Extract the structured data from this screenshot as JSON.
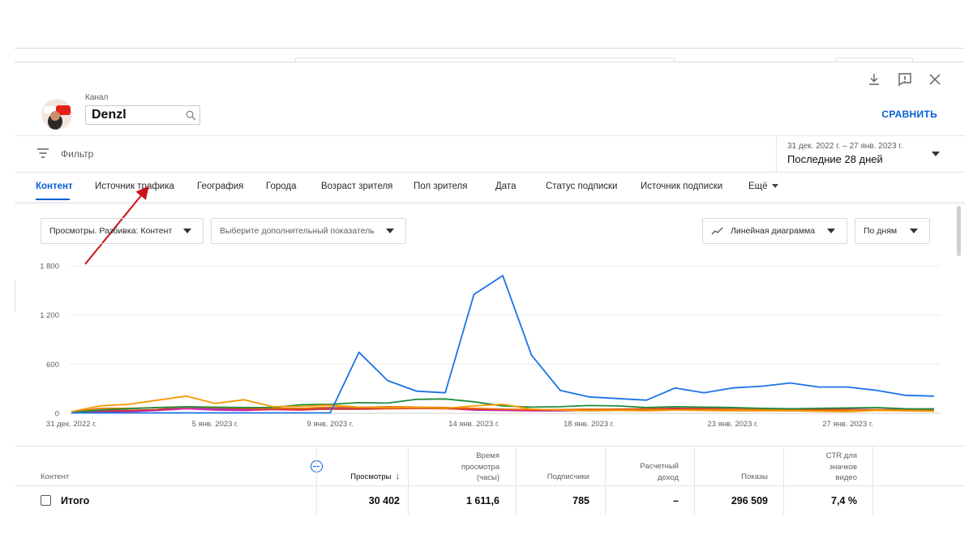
{
  "header": {
    "channel_label": "Канал",
    "channel_value": "Denzl",
    "compare_label": "СРАВНИТЬ",
    "avatar_text": "YouTube",
    "icons": [
      "download-icon",
      "feedback-icon",
      "close-icon",
      "search-icon"
    ]
  },
  "filter": {
    "label": "Фильтр",
    "date_range": "31 дек. 2022 г. – 27 янв. 2023 г.",
    "period": "Последние 28 дней"
  },
  "tabs": [
    {
      "label": "Контент",
      "active": true
    },
    {
      "label": "Источник трафика"
    },
    {
      "label": "География"
    },
    {
      "label": "Города"
    },
    {
      "label": "Возраст зрителя"
    },
    {
      "label": "Пол зрителя"
    },
    {
      "label": "Дата"
    },
    {
      "label": "Статус подписки"
    },
    {
      "label": "Источник подписки"
    },
    {
      "label": "Ещё"
    }
  ],
  "controls": {
    "metric": "Просмотры. Разбивка: Контент",
    "extra_metric": "Выберите дополнительный показатель",
    "chart_type": "Линейная диаграмма",
    "granularity": "По дням"
  },
  "chart_data": {
    "type": "line",
    "ylim": [
      0,
      1800
    ],
    "yticks": [
      0,
      600,
      1200,
      1800
    ],
    "ytick_labels": [
      "0",
      "600",
      "1 200",
      "1 800"
    ],
    "x_labels": [
      "31 дек. 2022 г.",
      "5 янв. 2023 г.",
      "9 янв. 2023 г.",
      "14 янв. 2023 г.",
      "18 янв. 2023 г.",
      "23 янв. 2023 г.",
      "27 янв. 2023 г."
    ],
    "x_label_index": [
      0,
      5,
      9,
      14,
      18,
      23,
      27
    ],
    "grid": true,
    "series": [
      {
        "color": "#1a73e8",
        "values": [
          5,
          5,
          5,
          5,
          5,
          5,
          5,
          5,
          5,
          5,
          745,
          400,
          270,
          250,
          1450,
          1680,
          710,
          280,
          200,
          180,
          160,
          310,
          250,
          310,
          330,
          370,
          320,
          320,
          280,
          220,
          210
        ]
      },
      {
        "color": "#f29900",
        "values": [
          20,
          90,
          110,
          160,
          210,
          120,
          165,
          80,
          85,
          100,
          75,
          65,
          70,
          60,
          90,
          110,
          50,
          40,
          30,
          35,
          30,
          40,
          35,
          30,
          30,
          30,
          25,
          20,
          35,
          30,
          25
        ]
      },
      {
        "color": "#1e8e3e",
        "values": [
          10,
          40,
          55,
          70,
          80,
          75,
          70,
          70,
          105,
          110,
          130,
          125,
          170,
          175,
          140,
          90,
          75,
          80,
          95,
          90,
          70,
          80,
          75,
          70,
          60,
          55,
          60,
          65,
          70,
          55,
          50
        ]
      },
      {
        "color": "#e8710a",
        "values": [
          15,
          60,
          60,
          70,
          75,
          70,
          65,
          60,
          60,
          75,
          70,
          80,
          75,
          70,
          60,
          50,
          45,
          45,
          50,
          45,
          50,
          40,
          45,
          50,
          45,
          40,
          35,
          40,
          45,
          40,
          40
        ]
      },
      {
        "color": "#d93025",
        "values": [
          10,
          30,
          35,
          45,
          80,
          65,
          55,
          50,
          45,
          50,
          50,
          55,
          60,
          55,
          50,
          45,
          40,
          40,
          45,
          50,
          55,
          60,
          55,
          50,
          45,
          40,
          50,
          45,
          40,
          35,
          40
        ]
      },
      {
        "color": "#9334e6",
        "values": [
          5,
          20,
          30,
          40,
          70,
          50,
          45,
          60,
          55,
          65,
          70,
          75,
          70,
          65,
          45,
          40,
          40,
          35,
          40,
          45,
          50,
          55,
          60,
          65,
          55,
          50,
          55,
          50,
          45,
          50,
          55
        ]
      },
      {
        "color": "#e52592",
        "values": [
          5,
          15,
          20,
          35,
          55,
          40,
          35,
          45,
          40,
          55,
          60,
          60,
          65,
          60,
          40,
          35,
          30,
          30,
          35,
          40,
          45,
          50,
          55,
          60,
          50,
          45,
          50,
          45,
          40,
          45,
          50
        ]
      }
    ]
  },
  "table": {
    "headers": {
      "content": "Контент",
      "views": "Просмотры",
      "watch_time": [
        "Время",
        "просмотра",
        "(часы)"
      ],
      "subscribers": "Подписчики",
      "revenue": [
        "Расчетный",
        "доход"
      ],
      "impressions": "Показы",
      "ctr": [
        "CTR для",
        "значков",
        "видео"
      ]
    },
    "total": {
      "label": "Итого",
      "views": "30 402",
      "watch_time": "1 611,6",
      "subscribers": "785",
      "revenue": "–",
      "impressions": "296 509",
      "ctr": "7,4 %"
    }
  }
}
